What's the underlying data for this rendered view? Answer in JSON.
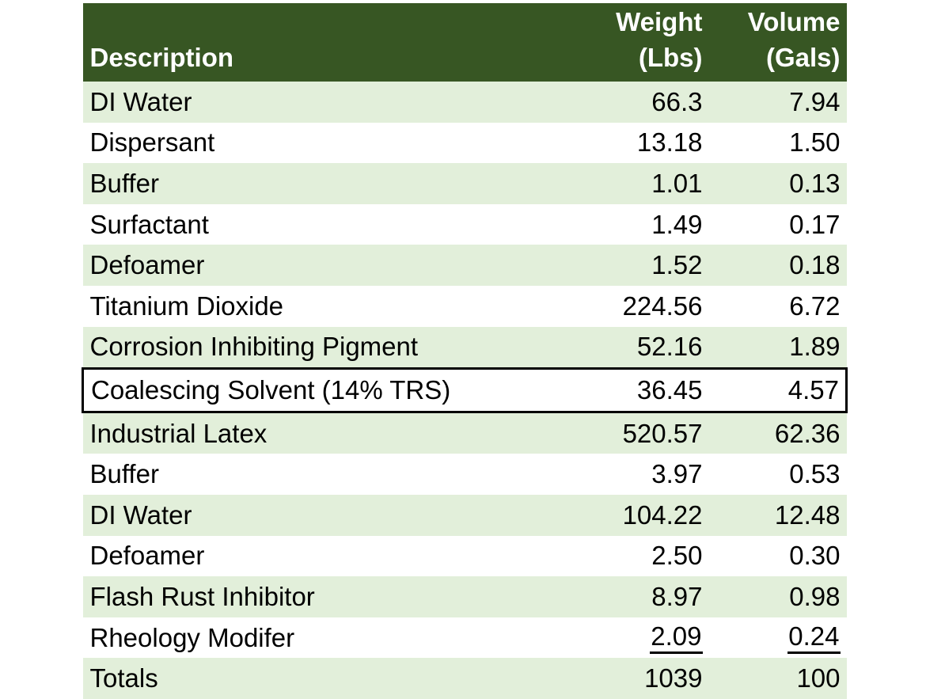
{
  "page": {
    "background_color": "#ffffff"
  },
  "table": {
    "header_bg": "#375623",
    "header_text_color": "#ffffff",
    "stripe_color": "#e2efda",
    "body_text_color": "#000000",
    "outline_color": "#000000",
    "columns": [
      {
        "key": "description",
        "label_lines": [
          "Description"
        ],
        "align": "left"
      },
      {
        "key": "weight",
        "label_lines": [
          "Weight",
          "(Lbs)"
        ],
        "align": "right"
      },
      {
        "key": "volume",
        "label_lines": [
          "Volume",
          "(Gals)"
        ],
        "align": "right"
      }
    ],
    "rows": [
      {
        "description": "DI Water",
        "weight": "66.3",
        "volume": "7.94"
      },
      {
        "description": "Dispersant",
        "weight": "13.18",
        "volume": "1.50"
      },
      {
        "description": "Buffer",
        "weight": "1.01",
        "volume": "0.13"
      },
      {
        "description": "Surfactant",
        "weight": "1.49",
        "volume": "0.17"
      },
      {
        "description": "Defoamer",
        "weight": "1.52",
        "volume": "0.18"
      },
      {
        "description": "Titanium Dioxide",
        "weight": "224.56",
        "volume": "6.72"
      },
      {
        "description": "Corrosion Inhibiting Pigment",
        "weight": "52.16",
        "volume": "1.89"
      },
      {
        "description": "Coalescing Solvent (14% TRS)",
        "weight": "36.45",
        "volume": "4.57",
        "outlined": true
      },
      {
        "description": "Industrial Latex",
        "weight": "520.57",
        "volume": "62.36"
      },
      {
        "description": "Buffer",
        "weight": "3.97",
        "volume": "0.53"
      },
      {
        "description": "DI Water",
        "weight": "104.22",
        "volume": "12.48"
      },
      {
        "description": "Defoamer",
        "weight": "2.50",
        "volume": "0.30"
      },
      {
        "description": "Flash Rust Inhibitor",
        "weight": "8.97",
        "volume": "0.98"
      },
      {
        "description": "Rheology Modifer",
        "weight": "2.09",
        "volume": "0.24",
        "underline_values": true
      },
      {
        "description": "Totals",
        "weight": "1039",
        "volume": "100",
        "is_total": true
      }
    ]
  }
}
